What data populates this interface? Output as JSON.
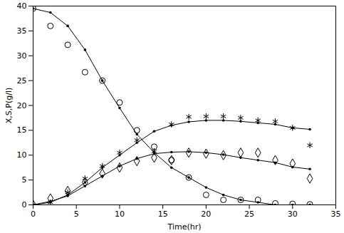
{
  "chart_data": {
    "type": "line",
    "x_label": "Time(hr)",
    "y_label": "X,S,P(g/l)",
    "xlim": [
      0,
      35
    ],
    "xticks": [
      0,
      5,
      10,
      15,
      20,
      25,
      30,
      35
    ],
    "ylim": [
      0,
      40
    ],
    "yticks": [
      0,
      5,
      10,
      15,
      20,
      25,
      30,
      35,
      40
    ],
    "grid": false,
    "x": [
      0,
      2,
      4,
      6,
      8,
      10,
      12,
      14,
      16,
      18,
      20,
      22,
      24,
      26,
      28,
      30,
      32
    ],
    "series": [
      {
        "type": "scatter",
        "marker": "circle",
        "color": "#000000",
        "values": [
          39.5,
          36,
          32.2,
          26.7,
          25,
          20.6,
          15,
          11.7,
          9,
          5.5,
          2,
          1,
          1,
          1,
          0.3,
          0.2,
          0.1
        ]
      },
      {
        "type": "line",
        "marker": "dot",
        "color": "#000000",
        "values": [
          39.5,
          38.7,
          36,
          31.2,
          25,
          19.5,
          14.2,
          10.5,
          7.5,
          5.5,
          3.5,
          2,
          1,
          0.5,
          0,
          0,
          0
        ]
      },
      {
        "type": "scatter",
        "marker": "asterisk",
        "color": "#000000",
        "values": [
          0,
          0.5,
          2.5,
          5.3,
          7.8,
          10.5,
          13,
          10.8,
          16.2,
          17.7,
          17.8,
          17.8,
          17.5,
          17,
          16.8,
          15.5,
          12
        ]
      },
      {
        "type": "line",
        "marker": "dot",
        "color": "#000000",
        "values": [
          0,
          0.5,
          2,
          4.5,
          7.5,
          10,
          12.5,
          14.8,
          16,
          16.7,
          17,
          17,
          16.8,
          16.5,
          16.2,
          15.5,
          15.2
        ]
      },
      {
        "type": "scatter",
        "marker": "diamond",
        "color": "#000000",
        "values": [
          0,
          1.3,
          2.8,
          4.5,
          6.3,
          7.5,
          8.8,
          9.5,
          9,
          10.5,
          10.3,
          10,
          10.5,
          10.5,
          9,
          8.3,
          5.3
        ]
      },
      {
        "type": "line",
        "marker": "dot",
        "color": "#000000",
        "values": [
          0,
          0.7,
          1.8,
          3.8,
          5.8,
          7.8,
          9.3,
          10.3,
          10.6,
          10.7,
          10.5,
          10.1,
          9.5,
          9,
          8.5,
          7.6,
          7.2
        ]
      }
    ]
  }
}
